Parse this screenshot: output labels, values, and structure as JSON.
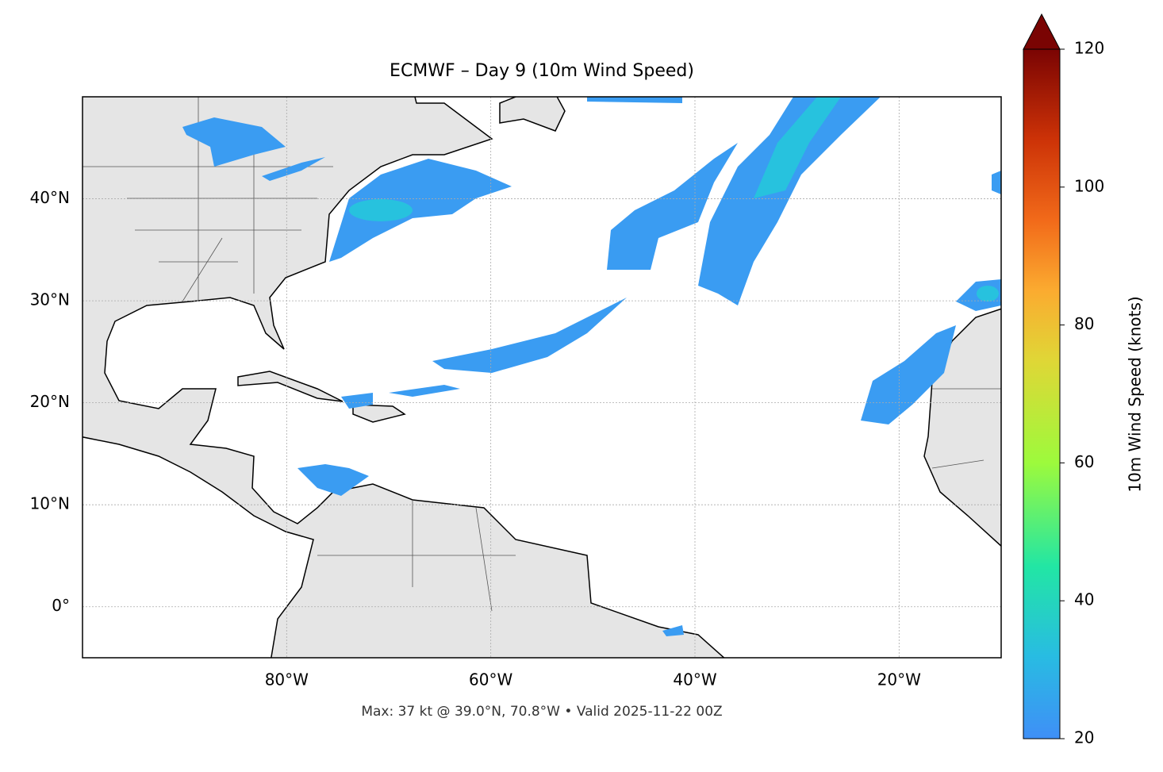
{
  "title": "ECMWF – Day 9 (10m Wind Speed)",
  "footer": "Max: 37 kt @ 39.0°N, 70.8°W • Valid 2025-11-22 00Z",
  "map": {
    "lonlim": [
      -100,
      -10
    ],
    "latlim": [
      -5,
      50
    ],
    "lon_ticks": [
      {
        "value": -80,
        "label": "80°W"
      },
      {
        "value": -60,
        "label": "60°W"
      },
      {
        "value": -40,
        "label": "40°W"
      },
      {
        "value": -20,
        "label": "20°W"
      }
    ],
    "lat_ticks": [
      {
        "value": 0,
        "label": "0°"
      },
      {
        "value": 10,
        "label": "10°N"
      },
      {
        "value": 20,
        "label": "20°N"
      },
      {
        "value": 30,
        "label": "30°N"
      },
      {
        "value": 40,
        "label": "40°N"
      }
    ],
    "grid": true
  },
  "colorbar": {
    "label": "10m Wind Speed (knots)",
    "lim": [
      20,
      120
    ],
    "ticks": [
      20,
      40,
      60,
      80,
      100,
      120
    ]
  }
}
